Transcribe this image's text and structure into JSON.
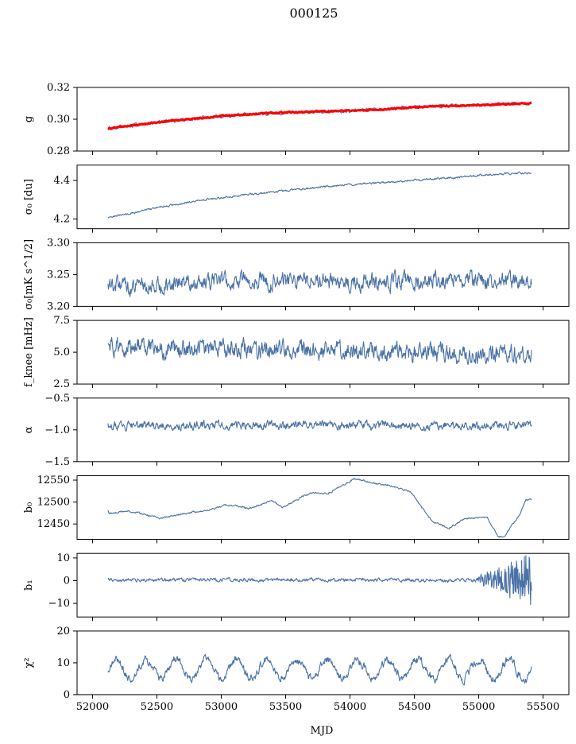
{
  "figure_title": "000125",
  "x_axis": {
    "label": "MJD",
    "range": [
      51880,
      55700
    ],
    "ticks": [
      52000,
      52500,
      53000,
      53500,
      54000,
      54500,
      55000,
      55500
    ]
  },
  "chart_data": [
    {
      "type": "line",
      "key": "g",
      "ylabel": "g",
      "ylim": [
        0.28,
        0.32
      ],
      "yticks": [
        0.28,
        0.3,
        0.32
      ],
      "ytick_labels": [
        "0.28",
        "0.30",
        "0.32"
      ],
      "xmin": 52120,
      "xmax": 55410,
      "series": [
        {
          "name": "g",
          "color": "#4a72a6",
          "knots": [
            [
              52120,
              0.294
            ],
            [
              52300,
              0.296
            ],
            [
              52600,
              0.299
            ],
            [
              53000,
              0.302
            ],
            [
              53400,
              0.304
            ],
            [
              53800,
              0.305
            ],
            [
              54200,
              0.306
            ],
            [
              54600,
              0.308
            ],
            [
              55000,
              0.309
            ],
            [
              55400,
              0.31
            ]
          ],
          "noise": 0.0008,
          "seed": 1
        },
        {
          "name": "g fit",
          "color": "#ff0000",
          "knots": [
            [
              52120,
              0.294
            ],
            [
              52300,
              0.296
            ],
            [
              52600,
              0.299
            ],
            [
              53000,
              0.302
            ],
            [
              53400,
              0.304
            ],
            [
              53800,
              0.305
            ],
            [
              54200,
              0.306
            ],
            [
              54600,
              0.308
            ],
            [
              55000,
              0.309
            ],
            [
              55400,
              0.31
            ]
          ],
          "noise": 0.0003,
          "seed": 2
        }
      ]
    },
    {
      "type": "line",
      "key": "sigma0_du",
      "ylabel": "σ₀ [du]",
      "ylim": [
        4.15,
        4.48
      ],
      "yticks": [
        4.2,
        4.4
      ],
      "ytick_labels": [
        "4.2",
        "4.4"
      ],
      "xmin": 52120,
      "xmax": 55410,
      "series": [
        {
          "name": "sigma0 du",
          "color": "#4a72a6",
          "knots": [
            [
              52120,
              4.205
            ],
            [
              52400,
              4.245
            ],
            [
              52800,
              4.295
            ],
            [
              53200,
              4.325
            ],
            [
              53600,
              4.355
            ],
            [
              54000,
              4.378
            ],
            [
              54400,
              4.395
            ],
            [
              54800,
              4.415
            ],
            [
              55200,
              4.435
            ],
            [
              55410,
              4.44
            ]
          ],
          "noise": 0.004,
          "seed": 3
        }
      ]
    },
    {
      "type": "line",
      "key": "sigma0_mK",
      "ylabel": "σ₀[mK s^1/2]",
      "ylim": [
        3.2,
        3.3
      ],
      "yticks": [
        3.2,
        3.25,
        3.3
      ],
      "ytick_labels": [
        "3.20",
        "3.25",
        "3.30"
      ],
      "xmin": 52120,
      "xmax": 55410,
      "series": [
        {
          "name": "sigma0 mK",
          "color": "#4a72a6",
          "knots": [
            [
              52120,
              3.232
            ],
            [
              53000,
              3.24
            ],
            [
              54000,
              3.238
            ],
            [
              55000,
              3.24
            ],
            [
              55410,
              3.238
            ]
          ],
          "noise": 0.01,
          "seed": 4
        }
      ]
    },
    {
      "type": "line",
      "key": "fknee",
      "ylabel": "f_knee [mHz]",
      "ylim": [
        2.5,
        7.5
      ],
      "yticks": [
        2.5,
        5.0,
        7.5
      ],
      "ytick_labels": [
        "2.5",
        "5.0",
        "7.5"
      ],
      "xmin": 52120,
      "xmax": 55410,
      "series": [
        {
          "name": "fknee",
          "color": "#4a72a6",
          "knots": [
            [
              52120,
              5.4
            ],
            [
              52600,
              5.3
            ],
            [
              53200,
              5.25
            ],
            [
              54000,
              5.1
            ],
            [
              54800,
              4.9
            ],
            [
              55410,
              4.8
            ]
          ],
          "noise": 0.55,
          "seed": 5
        }
      ]
    },
    {
      "type": "line",
      "key": "alpha",
      "ylabel": "α",
      "ylim": [
        -1.5,
        -0.5
      ],
      "yticks": [
        -1.5,
        -1.0,
        -0.5
      ],
      "ytick_labels": [
        "−1.5",
        "−1.0",
        "−0.5"
      ],
      "xmin": 52120,
      "xmax": 55410,
      "series": [
        {
          "name": "alpha",
          "color": "#4a72a6",
          "knots": [
            [
              52120,
              -0.93
            ],
            [
              55410,
              -0.93
            ]
          ],
          "noise": 0.05,
          "seed": 6
        }
      ]
    },
    {
      "type": "line",
      "key": "b0",
      "ylabel": "b₀",
      "ylim": [
        12415,
        12560
      ],
      "yticks": [
        12450,
        12500,
        12550
      ],
      "ytick_labels": [
        "12450",
        "12500",
        "12550"
      ],
      "xmin": 52120,
      "xmax": 55410,
      "series": [
        {
          "name": "b0",
          "color": "#4a72a6",
          "knots": [
            [
              52120,
              12480
            ],
            [
              52130,
              12474
            ],
            [
              52300,
              12480
            ],
            [
              52400,
              12475
            ],
            [
              52600,
              12463
            ],
            [
              52800,
              12474
            ],
            [
              53000,
              12480
            ],
            [
              53200,
              12494
            ],
            [
              53400,
              12485
            ],
            [
              53600,
              12503
            ],
            [
              53700,
              12488
            ],
            [
              53900,
              12515
            ],
            [
              54000,
              12522
            ],
            [
              54100,
              12518
            ],
            [
              54350,
              12553
            ],
            [
              54500,
              12545
            ],
            [
              54650,
              12538
            ],
            [
              54850,
              12525
            ],
            [
              55050,
              12457
            ],
            [
              55200,
              12440
            ],
            [
              55350,
              12462
            ],
            [
              55550,
              12465
            ],
            [
              55650,
              12420
            ],
            [
              55700,
              12420
            ],
            [
              55850,
              12475
            ],
            [
              55900,
              12506
            ],
            [
              55950,
              12505
            ]
          ],
          "noise": 1.5,
          "seed": 7
        }
      ]
    },
    {
      "type": "line",
      "key": "b1",
      "ylabel": "b₁",
      "ylim": [
        -16,
        12
      ],
      "yticks": [
        -10,
        0,
        10
      ],
      "ytick_labels": [
        "−10",
        "0",
        "10"
      ],
      "xmin": 52120,
      "xmax": 55410,
      "series": [
        {
          "name": "b1",
          "color": "#4a72a6",
          "knots": [
            [
              52120,
              0.3
            ],
            [
              55410,
              0.3
            ]
          ],
          "noise": 0.6,
          "seed": 8
        }
      ]
    },
    {
      "type": "line",
      "key": "chi2",
      "ylabel": "χ²",
      "ylim": [
        0,
        20
      ],
      "yticks": [
        0,
        10,
        20
      ],
      "ytick_labels": [
        "0",
        "10",
        "20"
      ],
      "xmin": 52120,
      "xmax": 55410,
      "series": [
        {
          "name": "chi2",
          "color": "#4a72a6",
          "knots": [
            [
              52120,
              8
            ],
            [
              55410,
              8
            ]
          ],
          "noise": 1.0,
          "seed": 9
        }
      ]
    }
  ]
}
